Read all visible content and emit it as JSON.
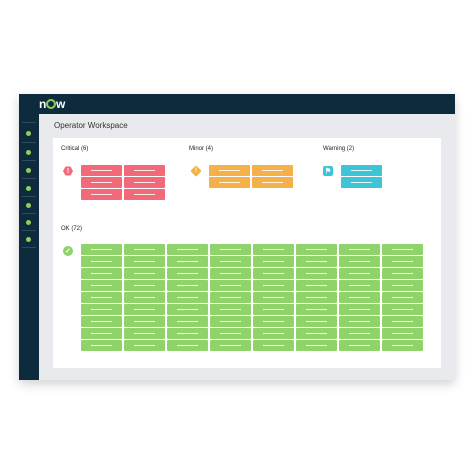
{
  "app": {
    "logo": "now"
  },
  "workspace": {
    "title": "Operator Workspace"
  },
  "groups": [
    {
      "key": "critical",
      "label": "Critical (6)",
      "color": "#f26a7a",
      "icon": "critical-hexagon-icon",
      "count": 6
    },
    {
      "key": "minor",
      "label": "Minor (4)",
      "color": "#f5b04a",
      "icon": "minor-diamond-icon",
      "count": 4
    },
    {
      "key": "warning",
      "label": "Warning (2)",
      "color": "#3ec4d6",
      "icon": "warning-flag-icon",
      "count": 2
    },
    {
      "key": "ok",
      "label": "OK (72)",
      "color": "#8fd36a",
      "icon": "ok-check-icon",
      "count": 72
    }
  ],
  "sidebar": {
    "icons": [
      "nav-icon-1",
      "nav-icon-2",
      "nav-icon-3",
      "nav-icon-4",
      "nav-icon-5",
      "nav-icon-6",
      "nav-icon-7"
    ]
  }
}
